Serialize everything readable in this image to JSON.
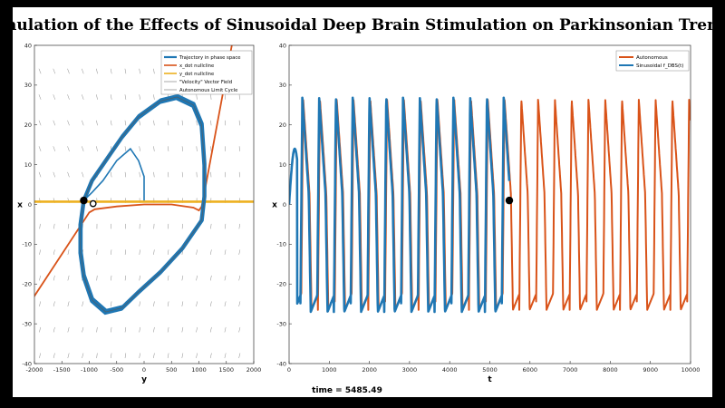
{
  "title": "Simulation of the Effects of Sinusoidal Deep Brain Stimulation on Parkinsonian Tremor",
  "time_label": "time = 5485.49",
  "chart_data": [
    {
      "type": "line",
      "name": "phase-plane",
      "xlabel": "y",
      "ylabel": "x",
      "xlim": [
        -2000,
        2000
      ],
      "ylim": [
        -40,
        40
      ],
      "xticks": [
        -2000,
        -1500,
        -1000,
        -500,
        0,
        500,
        1000,
        1500,
        2000
      ],
      "yticks": [
        -40,
        -30,
        -20,
        -10,
        0,
        10,
        20,
        30,
        40
      ],
      "grid": false,
      "legend_position": "top-right",
      "legend": [
        {
          "label": "Trajectory in phase space",
          "color": "#1f77b4",
          "style": "thick"
        },
        {
          "label": "x_dot nullcline",
          "color": "#d95319",
          "style": "line"
        },
        {
          "label": "y_dot nullcline",
          "color": "#edb120",
          "style": "line"
        },
        {
          "label": "\"Velocity\" Vector Field",
          "color": "#6e6e6e",
          "style": "thin"
        },
        {
          "label": "Autonomous Limit Cycle",
          "color": "#6e6e6e",
          "style": "thin"
        }
      ],
      "limit_cycle": [
        [
          -1100,
          1
        ],
        [
          -1160,
          -5
        ],
        [
          -1160,
          -12
        ],
        [
          -1100,
          -18
        ],
        [
          -950,
          -24
        ],
        [
          -700,
          -27
        ],
        [
          -400,
          -26
        ],
        [
          -100,
          -22
        ],
        [
          300,
          -17
        ],
        [
          700,
          -11
        ],
        [
          1050,
          -4
        ],
        [
          1100,
          2
        ],
        [
          1100,
          10
        ],
        [
          1050,
          20
        ],
        [
          900,
          25
        ],
        [
          600,
          27
        ],
        [
          300,
          26
        ],
        [
          -100,
          22
        ],
        [
          -400,
          17
        ],
        [
          -700,
          11
        ],
        [
          -950,
          6
        ],
        [
          -1100,
          1
        ]
      ],
      "transient": [
        [
          0,
          1
        ],
        [
          0,
          7
        ],
        [
          -100,
          11
        ],
        [
          -250,
          14
        ],
        [
          -500,
          11
        ],
        [
          -750,
          6
        ],
        [
          -950,
          3
        ],
        [
          -1100,
          1
        ]
      ],
      "x_nullcline": [
        [
          -3000,
          -44
        ],
        [
          -1000,
          -2
        ],
        [
          -900,
          -1.2
        ],
        [
          -500,
          -0.5
        ],
        [
          0,
          0
        ],
        [
          500,
          0
        ],
        [
          900,
          -0.8
        ],
        [
          1000,
          -1.5
        ],
        [
          1050,
          -0.5
        ],
        [
          1100,
          3
        ],
        [
          1600,
          40
        ]
      ],
      "y_nullcline": [
        [
          -2000,
          0.7
        ],
        [
          2000,
          0.7
        ]
      ],
      "current_point": [
        -1100,
        1
      ],
      "start_point": [
        -930,
        0.2
      ]
    },
    {
      "type": "line",
      "name": "time-series",
      "xlabel": "t",
      "ylabel": "x",
      "xlim": [
        0,
        10000
      ],
      "ylim": [
        -40,
        40
      ],
      "xticks": [
        0,
        1000,
        2000,
        3000,
        4000,
        5000,
        6000,
        7000,
        8000,
        9000,
        10000
      ],
      "yticks": [
        -40,
        -30,
        -20,
        -10,
        0,
        10,
        20,
        30,
        40
      ],
      "grid": false,
      "legend_position": "top-right",
      "legend": [
        {
          "label": "Autonomous",
          "color": "#d95319"
        },
        {
          "label": "Sinusoidal f_DBS(t)",
          "color": "#1f77b4"
        }
      ],
      "series": [
        {
          "name": "Autonomous",
          "color": "#d95319",
          "period": 418,
          "phase": 300,
          "amplitude_max": 26.5,
          "amplitude_min": -26.5,
          "t_range": [
            250,
            10000
          ]
        },
        {
          "name": "Sinusoidal f_DBS(t)",
          "color": "#1f77b4",
          "period": 418,
          "phase": 280,
          "amplitude_max": 27,
          "amplitude_min": -27,
          "t_range": [
            0,
            5485.49
          ]
        }
      ],
      "marker": {
        "t": 5485.49,
        "x": 1
      }
    }
  ]
}
